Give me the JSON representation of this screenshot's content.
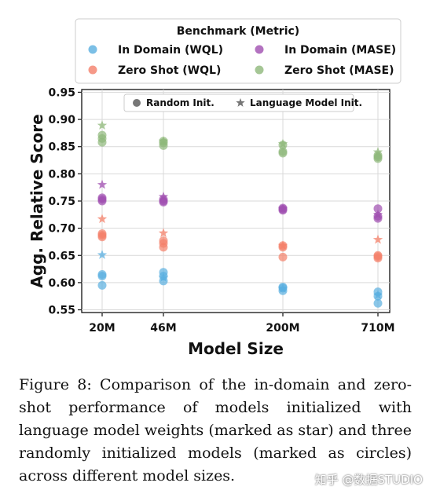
{
  "chart_data": {
    "type": "scatter",
    "xlabel": "Model Size",
    "ylabel": "Agg. Relative Score",
    "categories": [
      "20M",
      "46M",
      "200M",
      "710M"
    ],
    "yticks": [
      0.55,
      0.6,
      0.65,
      0.7,
      0.75,
      0.8,
      0.85,
      0.9,
      0.95
    ],
    "ylim": [
      0.545,
      0.955
    ],
    "grid": true,
    "legend": {
      "title": "Benchmark (Metric)",
      "placement": "top",
      "entries": [
        {
          "label": "In Domain (WQL)",
          "color": "#5aafe0"
        },
        {
          "label": "In Domain (MASE)",
          "color": "#a04fb0"
        },
        {
          "label": "Zero Shot (WQL)",
          "color": "#f4806a"
        },
        {
          "label": "Zero Shot (MASE)",
          "color": "#8fb87a"
        }
      ]
    },
    "marker_legend": {
      "placement": "top",
      "entries": [
        {
          "label": "Random Init.",
          "marker": "circle"
        },
        {
          "label": "Language Model Init.",
          "marker": "star"
        }
      ]
    },
    "series": [
      {
        "benchmark": "In Domain (WQL)",
        "marker": "circle",
        "color": "#5aafe0",
        "points": {
          "20M": [
            0.595,
            0.612,
            0.615
          ],
          "46M": [
            0.603,
            0.612,
            0.619
          ],
          "200M": [
            0.585,
            0.59,
            0.592
          ],
          "710M": [
            0.562,
            0.575,
            0.583
          ]
        }
      },
      {
        "benchmark": "In Domain (WQL)",
        "marker": "star",
        "color": "#5aafe0",
        "points": {
          "20M": [
            0.651
          ],
          "46M": [
            0.609
          ],
          "200M": [
            0.589
          ],
          "710M": [
            0.577
          ]
        }
      },
      {
        "benchmark": "In Domain (MASE)",
        "marker": "circle",
        "color": "#a04fb0",
        "points": {
          "20M": [
            0.75,
            0.753,
            0.756
          ],
          "46M": [
            0.748,
            0.75,
            0.753
          ],
          "200M": [
            0.733,
            0.735,
            0.737
          ],
          "710M": [
            0.718,
            0.722,
            0.736
          ]
        }
      },
      {
        "benchmark": "In Domain (MASE)",
        "marker": "star",
        "color": "#a04fb0",
        "points": {
          "20M": [
            0.78
          ],
          "46M": [
            0.758
          ],
          "200M": [
            0.736
          ],
          "710M": [
            0.725
          ]
        }
      },
      {
        "benchmark": "Zero Shot (WQL)",
        "marker": "circle",
        "color": "#f4806a",
        "points": {
          "20M": [
            0.684,
            0.687,
            0.69
          ],
          "46M": [
            0.665,
            0.672,
            0.677
          ],
          "200M": [
            0.647,
            0.665,
            0.668
          ],
          "710M": [
            0.645,
            0.648,
            0.65
          ]
        }
      },
      {
        "benchmark": "Zero Shot (WQL)",
        "marker": "star",
        "color": "#f4806a",
        "points": {
          "20M": [
            0.717
          ],
          "46M": [
            0.691
          ],
          "200M": [
            0.668
          ],
          "710M": [
            0.679
          ]
        }
      },
      {
        "benchmark": "Zero Shot (MASE)",
        "marker": "circle",
        "color": "#8fb87a",
        "points": {
          "20M": [
            0.858,
            0.865,
            0.871
          ],
          "46M": [
            0.852,
            0.857,
            0.86
          ],
          "200M": [
            0.838,
            0.841,
            0.853
          ],
          "710M": [
            0.828,
            0.831,
            0.834
          ]
        }
      },
      {
        "benchmark": "Zero Shot (MASE)",
        "marker": "star",
        "color": "#8fb87a",
        "points": {
          "20M": [
            0.889
          ],
          "46M": [
            0.86
          ],
          "200M": [
            0.855
          ],
          "710M": [
            0.84
          ]
        }
      }
    ]
  },
  "caption": "Figure 8:  Comparison of the in-domain and zero-shot performance of models initialized with language model weights (marked as star) and three randomly initialized models (marked as circles) across different model sizes.",
  "watermark": "知乎 @数据STUDIO"
}
